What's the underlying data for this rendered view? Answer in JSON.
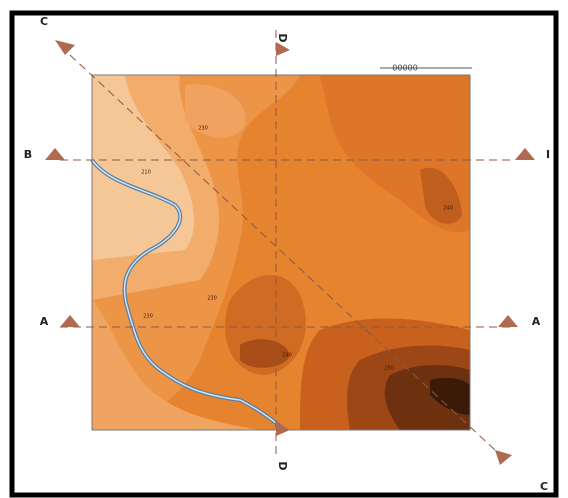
{
  "section_labels": {
    "c_top": "C",
    "d_top": "D",
    "b_left": "B",
    "b_right": "I",
    "a_left": "A",
    "a_right": "A",
    "d_bottom": "D",
    "c_bottom": "C"
  },
  "contour_labels": [
    "230",
    "210",
    "240",
    "230",
    "230",
    "240",
    "250"
  ],
  "scale_bar": "00000"
}
